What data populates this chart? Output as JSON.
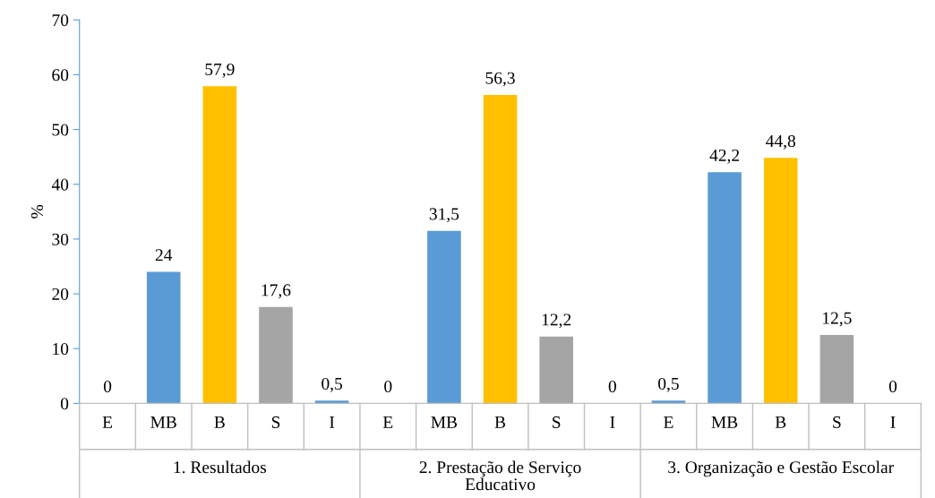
{
  "chart_data": {
    "type": "bar",
    "ylabel": "%",
    "categories": [
      "E",
      "MB",
      "B",
      "S",
      "I",
      "E",
      "MB",
      "B",
      "S",
      "I",
      "E",
      "MB",
      "B",
      "S",
      "I"
    ],
    "values": [
      0,
      24,
      57.9,
      17.6,
      0.5,
      0,
      31.5,
      56.3,
      12.2,
      0,
      0.5,
      42.2,
      44.8,
      12.5,
      0
    ],
    "value_labels": [
      "0",
      "24",
      "57,9",
      "17,6",
      "0,5",
      "0",
      "31,5",
      "56,3",
      "12,2",
      "0",
      "0,5",
      "42,2",
      "44,8",
      "12,5",
      "0"
    ],
    "colors": [
      "#5b9bd5",
      "#5b9bd5",
      "#ffc000",
      "#a5a5a5",
      "#5b9bd5",
      "#5b9bd5",
      "#5b9bd5",
      "#ffc000",
      "#a5a5a5",
      "#5b9bd5",
      "#5b9bd5",
      "#5b9bd5",
      "#ffc000",
      "#a5a5a5",
      "#5b9bd5"
    ],
    "ylim": [
      0,
      70
    ],
    "yticks": [
      0,
      10,
      20,
      30,
      40,
      50,
      60,
      70
    ],
    "annotations": [
      "1. Resultados",
      "2. Prestação de Serviço\nEducativo",
      "3. Organização e Gestão Escolar"
    ],
    "grid": false,
    "legend": false
  }
}
